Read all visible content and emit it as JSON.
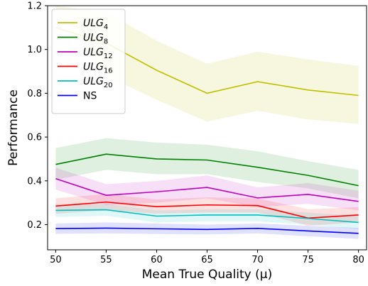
{
  "chart_data": {
    "type": "line",
    "xlabel": "Mean True Quality (μ)",
    "ylabel": "Performance",
    "x": [
      50,
      55,
      60,
      65,
      70,
      75,
      80
    ],
    "xticks": [
      "50",
      "55",
      "60",
      "65",
      "70",
      "75",
      "80"
    ],
    "yticks": [
      "0.2",
      "0.4",
      "0.6",
      "0.8",
      "1.0",
      "1.2"
    ],
    "xlim": [
      49.2,
      80.8
    ],
    "ylim": [
      0.085,
      1.2
    ],
    "legend_position": "upper-left",
    "grid": false,
    "series": [
      {
        "name": "ULG4",
        "base": "ULG",
        "sub": "4",
        "color": "#bfbf00",
        "values": [
          1.1,
          1.03,
          0.905,
          0.8,
          0.853,
          0.815,
          0.79
        ],
        "band": [
          [
            1.2,
            1.19
          ],
          [
            1.17,
            0.88
          ],
          [
            1.04,
            0.77
          ],
          [
            0.935,
            0.67
          ],
          [
            0.99,
            0.72
          ],
          [
            0.955,
            0.68
          ],
          [
            0.925,
            0.66
          ]
        ]
      },
      {
        "name": "ULG8",
        "base": "ULG",
        "sub": "8",
        "color": "#008000",
        "values": [
          0.475,
          0.522,
          0.5,
          0.495,
          0.462,
          0.425,
          0.378
        ],
        "band": [
          [
            0.55,
            0.405
          ],
          [
            0.595,
            0.45
          ],
          [
            0.575,
            0.43
          ],
          [
            0.565,
            0.43
          ],
          [
            0.535,
            0.395
          ],
          [
            0.49,
            0.365
          ],
          [
            0.45,
            0.32
          ]
        ]
      },
      {
        "name": "ULG12",
        "base": "ULG",
        "sub": "12",
        "color": "#bf00bf",
        "values": [
          0.41,
          0.334,
          0.35,
          0.37,
          0.322,
          0.338,
          0.306
        ],
        "band": [
          [
            0.46,
            0.36
          ],
          [
            0.385,
            0.29
          ],
          [
            0.4,
            0.3
          ],
          [
            0.425,
            0.32
          ],
          [
            0.37,
            0.28
          ],
          [
            0.39,
            0.295
          ],
          [
            0.355,
            0.265
          ]
        ]
      },
      {
        "name": "ULG16",
        "base": "ULG",
        "sub": "16",
        "color": "#ff0000",
        "values": [
          0.285,
          0.303,
          0.282,
          0.29,
          0.287,
          0.23,
          0.244
        ],
        "band": [
          [
            0.32,
            0.25
          ],
          [
            0.34,
            0.265
          ],
          [
            0.315,
            0.25
          ],
          [
            0.325,
            0.255
          ],
          [
            0.32,
            0.255
          ],
          [
            0.27,
            0.195
          ],
          [
            0.28,
            0.21
          ]
        ]
      },
      {
        "name": "ULG20",
        "base": "ULG",
        "sub": "20",
        "color": "#00bfbf",
        "values": [
          0.265,
          0.268,
          0.239,
          0.244,
          0.244,
          0.228,
          0.21
        ],
        "band": [
          [
            0.295,
            0.235
          ],
          [
            0.295,
            0.24
          ],
          [
            0.265,
            0.21
          ],
          [
            0.27,
            0.215
          ],
          [
            0.27,
            0.215
          ],
          [
            0.255,
            0.2
          ],
          [
            0.24,
            0.18
          ]
        ]
      },
      {
        "name": "NS",
        "base": "NS",
        "sub": "",
        "color": "#0000ff",
        "values": [
          0.182,
          0.184,
          0.181,
          0.178,
          0.183,
          0.171,
          0.16
        ],
        "band": [
          [
            0.205,
            0.158
          ],
          [
            0.21,
            0.16
          ],
          [
            0.205,
            0.157
          ],
          [
            0.2,
            0.155
          ],
          [
            0.205,
            0.16
          ],
          [
            0.195,
            0.147
          ],
          [
            0.185,
            0.135
          ]
        ]
      }
    ]
  }
}
